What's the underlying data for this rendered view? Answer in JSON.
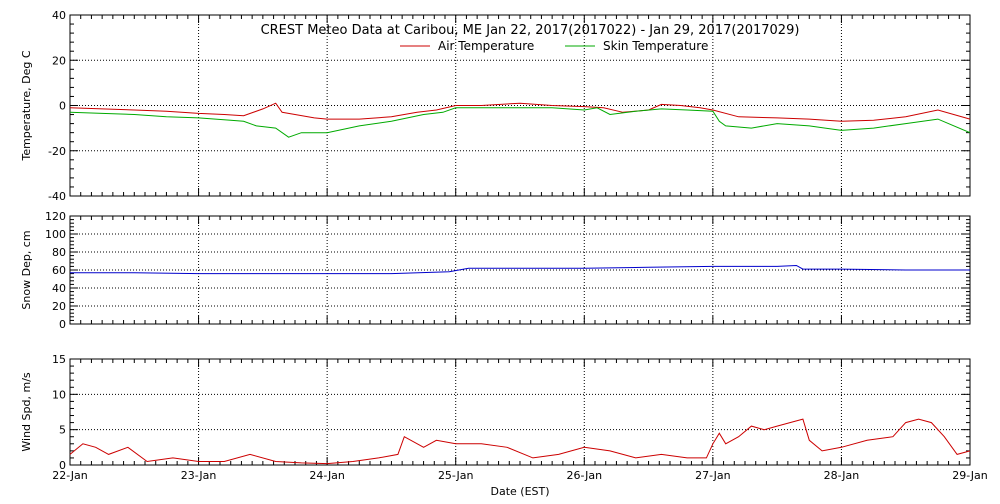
{
  "chart_data": {
    "title": "CREST Meteo Data at Caribou, ME   Jan 22, 2017(2017022) - Jan 29, 2017(2017029)",
    "xlabel": "Date (EST)",
    "x_ticks": [
      "22-Jan",
      "23-Jan",
      "24-Jan",
      "25-Jan",
      "26-Jan",
      "27-Jan",
      "28-Jan",
      "29-Jan"
    ],
    "xlim": [
      22,
      29
    ],
    "panels": [
      {
        "type": "line",
        "ylabel": "Temperature, Deg C",
        "ylim": [
          -40,
          40
        ],
        "y_ticks": [
          40,
          20,
          0,
          -20,
          -40
        ],
        "legend_position": "top-center",
        "series": [
          {
            "name": "Air Temperature",
            "color": "#cc0000",
            "x": [
              22.0,
              22.25,
              22.5,
              22.75,
              23.0,
              23.2,
              23.35,
              23.5,
              23.6,
              23.65,
              23.75,
              23.9,
              24.0,
              24.25,
              24.5,
              24.7,
              24.85,
              25.0,
              25.2,
              25.5,
              25.75,
              26.0,
              26.15,
              26.3,
              26.5,
              26.6,
              26.75,
              26.9,
              27.0,
              27.2,
              27.5,
              27.75,
              28.0,
              28.25,
              28.5,
              28.75,
              29.0
            ],
            "values": [
              -1,
              -1.5,
              -2,
              -2.5,
              -3.5,
              -4,
              -4.5,
              -1.5,
              1,
              -3,
              -4,
              -5.5,
              -6,
              -6,
              -5,
              -3,
              -2,
              0,
              0,
              1,
              0,
              -0.5,
              -1,
              -3,
              -2,
              0.5,
              0,
              -1,
              -2,
              -5,
              -5.5,
              -6,
              -7,
              -6.5,
              -5,
              -2,
              -6
            ]
          },
          {
            "name": "Skin Temperature",
            "color": "#00aa00",
            "x": [
              22.0,
              22.25,
              22.5,
              22.75,
              23.0,
              23.25,
              23.35,
              23.45,
              23.6,
              23.7,
              23.8,
              24.0,
              24.25,
              24.5,
              24.75,
              24.9,
              25.0,
              25.25,
              25.5,
              25.75,
              26.0,
              26.1,
              26.2,
              26.4,
              26.6,
              26.8,
              27.0,
              27.05,
              27.1,
              27.3,
              27.5,
              27.75,
              28.0,
              28.25,
              28.5,
              28.75,
              29.0
            ],
            "values": [
              -3,
              -3.5,
              -4,
              -5,
              -5.5,
              -6.5,
              -7,
              -9,
              -10,
              -14,
              -12,
              -12,
              -9,
              -7,
              -4,
              -3,
              -1,
              -1,
              -1,
              -1,
              -2,
              -1,
              -4,
              -2.5,
              -1.5,
              -2,
              -2.5,
              -7,
              -9,
              -10,
              -8,
              -9,
              -11,
              -10,
              -8,
              -6,
              -12
            ]
          }
        ]
      },
      {
        "type": "line",
        "ylabel": "Snow Dep, cm",
        "ylim": [
          0,
          120
        ],
        "y_ticks": [
          120,
          100,
          80,
          60,
          40,
          20,
          0
        ],
        "series": [
          {
            "name": "",
            "color": "#0000cc",
            "x": [
              22.0,
              22.5,
              23.0,
              23.5,
              24.0,
              24.5,
              24.95,
              25.1,
              25.3,
              25.5,
              26.0,
              26.5,
              27.0,
              27.5,
              27.65,
              27.7,
              28.0,
              28.5,
              29.0
            ],
            "values": [
              57,
              57,
              56,
              56,
              56,
              56,
              58,
              62,
              62,
              62,
              62,
              63,
              64,
              64,
              65,
              61,
              61,
              60,
              60
            ]
          }
        ]
      },
      {
        "type": "line",
        "ylabel": "Wind Spd, m/s",
        "ylim": [
          0,
          15
        ],
        "y_ticks": [
          15,
          10,
          5,
          0
        ],
        "series": [
          {
            "name": "",
            "color": "#cc0000",
            "x": [
              22.0,
              22.1,
              22.2,
              22.3,
              22.45,
              22.6,
              22.8,
              23.0,
              23.2,
              23.4,
              23.6,
              23.8,
              24.0,
              24.2,
              24.4,
              24.55,
              24.6,
              24.75,
              24.85,
              25.0,
              25.2,
              25.4,
              25.6,
              25.8,
              26.0,
              26.2,
              26.4,
              26.6,
              26.8,
              26.95,
              27.0,
              27.05,
              27.1,
              27.2,
              27.3,
              27.4,
              27.5,
              27.6,
              27.7,
              27.75,
              27.85,
              28.0,
              28.2,
              28.4,
              28.5,
              28.6,
              28.7,
              28.8,
              28.9,
              29.0
            ],
            "values": [
              1.5,
              3,
              2.5,
              1.5,
              2.5,
              0.5,
              1,
              0.5,
              0.5,
              1.5,
              0.5,
              0.3,
              0.2,
              0.5,
              1,
              1.5,
              4,
              2.5,
              3.5,
              3,
              3,
              2.5,
              1,
              1.5,
              2.5,
              2,
              1,
              1.5,
              1,
              1,
              3,
              4.5,
              3,
              4,
              5.5,
              5,
              5.5,
              6,
              6.5,
              3.5,
              2,
              2.5,
              3.5,
              4,
              6,
              6.5,
              6,
              4,
              1.5,
              2
            ]
          }
        ]
      }
    ]
  }
}
